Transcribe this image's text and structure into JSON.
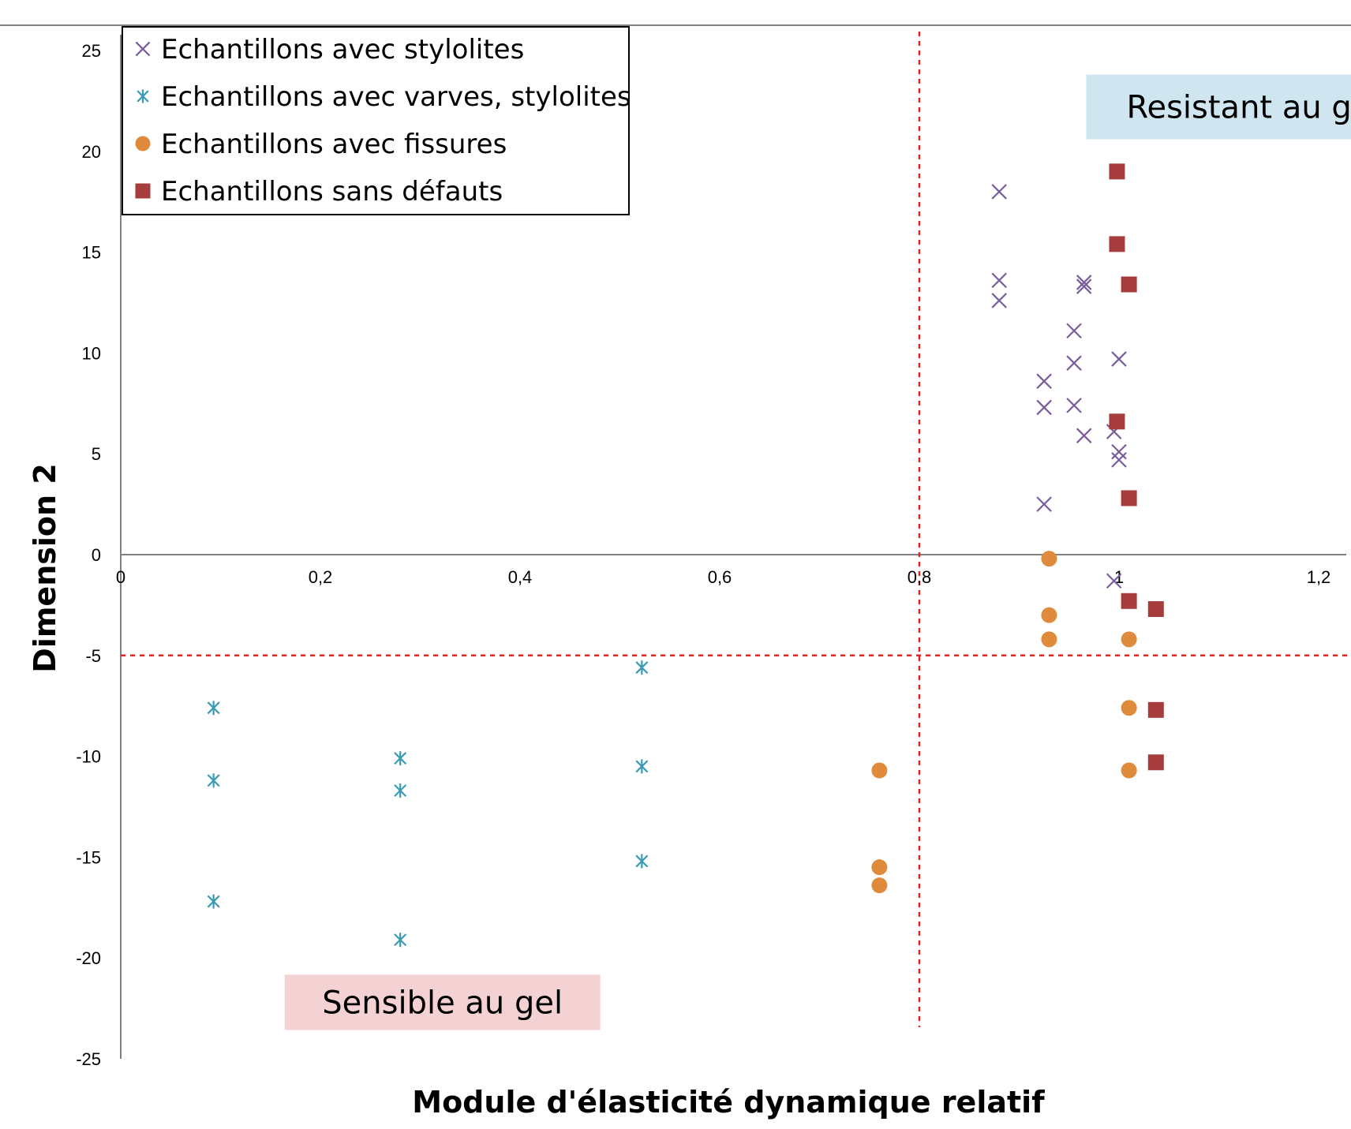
{
  "chart_data": {
    "type": "scatter",
    "xlabel": "Module d'élasticité dynamique relatif",
    "ylabel": "Dimension 2",
    "xlim": [
      0,
      1.2
    ],
    "ylim": [
      -25,
      25
    ],
    "x_ticks": [
      "0",
      "0,2",
      "0,4",
      "0,6",
      "0,8",
      "1",
      "1,2"
    ],
    "y_ticks": [
      "25",
      "20",
      "15",
      "10",
      "5",
      "0",
      "-5",
      "-10",
      "-15",
      "-20",
      "-25"
    ],
    "grid": false,
    "legend_position": "top-left",
    "thresholds": {
      "x": 0.8,
      "y": -5,
      "color": "#e8211c"
    },
    "annotations": [
      {
        "text": "Resistant au gel",
        "x": 1.0,
        "y": 22.2,
        "background": "#cfe6f1"
      },
      {
        "text": "Sensible au gel",
        "x": 0.18,
        "y": -22.2,
        "background": "#f4d2d4"
      }
    ],
    "series": [
      {
        "name": "Echantillons avec stylolites",
        "marker": "x",
        "color": "#7a5c9c",
        "points": [
          [
            0.88,
            18.0
          ],
          [
            0.88,
            13.6
          ],
          [
            0.88,
            12.6
          ],
          [
            0.965,
            13.5
          ],
          [
            0.965,
            13.3
          ],
          [
            0.955,
            11.1
          ],
          [
            0.955,
            9.5
          ],
          [
            0.955,
            7.4
          ],
          [
            0.925,
            8.6
          ],
          [
            0.925,
            7.3
          ],
          [
            0.925,
            2.5
          ],
          [
            0.965,
            5.9
          ],
          [
            1.0,
            9.7
          ],
          [
            0.995,
            6.1
          ],
          [
            1.0,
            5.1
          ],
          [
            1.0,
            4.7
          ],
          [
            0.995,
            -1.3
          ]
        ]
      },
      {
        "name": "Echantillons avec varves, stylolites",
        "marker": "asterisk",
        "color": "#3a9bb5",
        "points": [
          [
            0.093,
            -7.6
          ],
          [
            0.093,
            -11.2
          ],
          [
            0.093,
            -17.2
          ],
          [
            0.28,
            -10.1
          ],
          [
            0.28,
            -11.7
          ],
          [
            0.28,
            -19.1
          ],
          [
            0.522,
            -5.6
          ],
          [
            0.522,
            -10.5
          ],
          [
            0.522,
            -15.2
          ]
        ]
      },
      {
        "name": "Echantillons avec fissures",
        "marker": "circle",
        "color": "#e08a3b",
        "points": [
          [
            0.93,
            -0.2
          ],
          [
            0.93,
            -3.0
          ],
          [
            0.93,
            -4.2
          ],
          [
            1.01,
            -4.2
          ],
          [
            1.01,
            -7.6
          ],
          [
            1.01,
            -10.7
          ],
          [
            0.76,
            -10.7
          ],
          [
            0.76,
            -15.5
          ],
          [
            0.76,
            -16.4
          ]
        ]
      },
      {
        "name": "Echantillons sans défauts",
        "marker": "square",
        "color": "#a63c3c",
        "points": [
          [
            0.998,
            19.0
          ],
          [
            0.998,
            15.4
          ],
          [
            1.01,
            13.4
          ],
          [
            0.998,
            6.6
          ],
          [
            1.01,
            2.8
          ],
          [
            1.01,
            -2.3
          ],
          [
            1.037,
            -2.7
          ],
          [
            1.037,
            -7.7
          ],
          [
            1.037,
            -10.3
          ]
        ]
      }
    ]
  }
}
